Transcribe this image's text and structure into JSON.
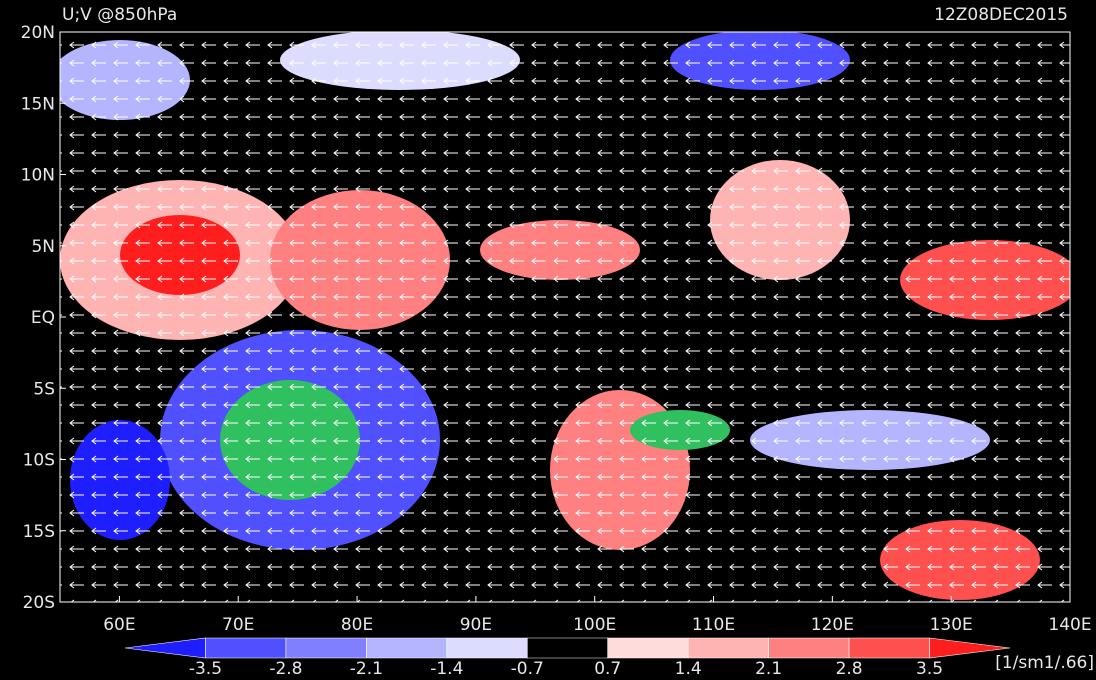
{
  "header": {
    "title": "U;V @850hPa",
    "valid_time": "12Z08DEC2015"
  },
  "axes": {
    "lat_labels": [
      "20N",
      "15N",
      "10N",
      "5N",
      "EQ",
      "5S",
      "10S",
      "15S",
      "20S"
    ],
    "lon_labels": [
      "60E",
      "70E",
      "80E",
      "90E",
      "100E",
      "110E",
      "120E",
      "130E",
      "140E"
    ]
  },
  "colorbar": {
    "colors": [
      "#1e1eff",
      "#5050ff",
      "#8080ff",
      "#b4b4ff",
      "#dcdcff",
      "#000000",
      "#ffdcdc",
      "#ffb4b4",
      "#ff8080",
      "#ff5050",
      "#ff1e1e"
    ],
    "labels": [
      "-3.5",
      "-2.8",
      "-2.1",
      "-1.4",
      "-0.7",
      "0.7",
      "1.4",
      "2.1",
      "2.8",
      "3.5"
    ],
    "units": "[1/sm1/.66]"
  }
}
